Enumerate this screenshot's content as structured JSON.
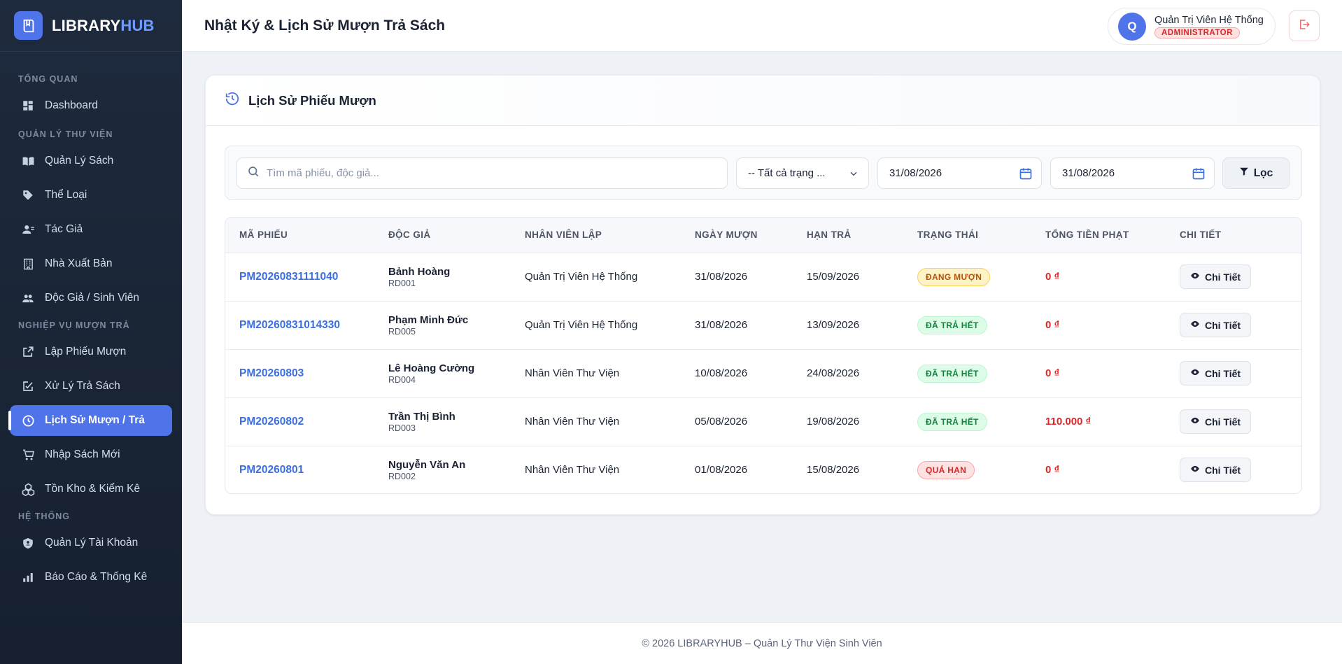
{
  "brand": {
    "name_part1": "LIBRARY",
    "name_part2": "HUB"
  },
  "sidebar": {
    "sections": [
      {
        "title": "TỔNG QUAN",
        "items": [
          {
            "label": "Dashboard",
            "icon": "dashboard-icon"
          }
        ]
      },
      {
        "title": "QUẢN LÝ THƯ VIỆN",
        "items": [
          {
            "label": "Quản Lý Sách",
            "icon": "book-icon"
          },
          {
            "label": "Thể Loại",
            "icon": "tag-icon"
          },
          {
            "label": "Tác Giả",
            "icon": "author-icon"
          },
          {
            "label": "Nhà Xuất Bản",
            "icon": "building-icon"
          },
          {
            "label": "Độc Giả / Sinh Viên",
            "icon": "users-icon"
          }
        ]
      },
      {
        "title": "NGHIỆP VỤ MƯỢN TRẢ",
        "items": [
          {
            "label": "Lập Phiếu Mượn",
            "icon": "external-link-icon"
          },
          {
            "label": "Xử Lý Trả Sách",
            "icon": "checkbox-edit-icon"
          },
          {
            "label": "Lịch Sử Mượn / Trả",
            "icon": "clock-icon",
            "active": true
          },
          {
            "label": "Nhập Sách Mới",
            "icon": "cart-icon"
          },
          {
            "label": "Tồn Kho & Kiểm Kê",
            "icon": "boxes-icon"
          }
        ]
      },
      {
        "title": "HỆ THỐNG",
        "items": [
          {
            "label": "Quản Lý Tài Khoản",
            "icon": "shield-icon"
          },
          {
            "label": "Báo Cáo & Thống Kê",
            "icon": "bar-chart-icon"
          }
        ]
      }
    ]
  },
  "header": {
    "title": "Nhật Ký & Lịch Sử Mượn Trả Sách",
    "user": {
      "initial": "Q",
      "name": "Quản Trị Viên Hệ Thống",
      "role": "ADMINISTRATOR"
    }
  },
  "card": {
    "title": "Lịch Sử Phiếu Mượn",
    "filters": {
      "search_placeholder": "Tìm mã phiếu, độc giả...",
      "status_selected": "-- Tất cả trạng ...",
      "date_from": "31/08/2026",
      "date_to": "31/08/2026",
      "filter_label": "Lọc"
    },
    "table": {
      "headers": [
        "MÃ PHIẾU",
        "ĐỘC GIẢ",
        "NHÂN VIÊN LẬP",
        "NGÀY MƯỢN",
        "HẠN TRẢ",
        "TRẠNG THÁI",
        "TỔNG TIỀN PHẠT",
        "CHI TIẾT"
      ],
      "detail_label": "Chi Tiết",
      "rows": [
        {
          "code": "PM20260831111040",
          "reader_name": "Bảnh Hoàng",
          "reader_id": "RD001",
          "staff": "Quản Trị Viên Hệ Thống",
          "borrow_date": "31/08/2026",
          "due_date": "15/09/2026",
          "status": "ĐANG MƯỢN",
          "status_type": "borrow",
          "fine": "0 ₫"
        },
        {
          "code": "PM20260831014330",
          "reader_name": "Phạm Minh Đức",
          "reader_id": "RD005",
          "staff": "Quản Trị Viên Hệ Thống",
          "borrow_date": "31/08/2026",
          "due_date": "13/09/2026",
          "status": "ĐÃ TRẢ HẾT",
          "status_type": "done",
          "fine": "0 ₫"
        },
        {
          "code": "PM20260803",
          "reader_name": "Lê Hoàng Cường",
          "reader_id": "RD004",
          "staff": "Nhân Viên Thư Viện",
          "borrow_date": "10/08/2026",
          "due_date": "24/08/2026",
          "status": "ĐÃ TRẢ HẾT",
          "status_type": "done",
          "fine": "0 ₫"
        },
        {
          "code": "PM20260802",
          "reader_name": "Trần Thị Bình",
          "reader_id": "RD003",
          "staff": "Nhân Viên Thư Viện",
          "borrow_date": "05/08/2026",
          "due_date": "19/08/2026",
          "status": "ĐÃ TRẢ HẾT",
          "status_type": "done",
          "fine": "110.000 ₫"
        },
        {
          "code": "PM20260801",
          "reader_name": "Nguyễn Văn An",
          "reader_id": "RD002",
          "staff": "Nhân Viên Thư Viện",
          "borrow_date": "01/08/2026",
          "due_date": "15/08/2026",
          "status": "QUÁ HẠN",
          "status_type": "late",
          "fine": "0 ₫"
        }
      ]
    }
  },
  "footer": {
    "text": "© 2026 LIBRARYHUB – Quản Lý Thư Viện Sinh Viên"
  },
  "colors": {
    "accent": "#4f73e8",
    "sidebar_bg": "#1e2a3d",
    "danger": "#dc2626",
    "success": "#15803d",
    "warning": "#b45309"
  }
}
